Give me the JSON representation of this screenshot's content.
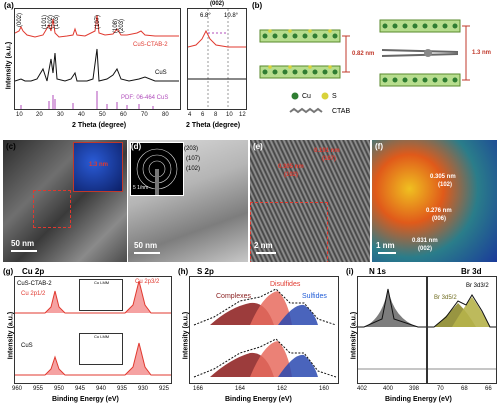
{
  "panel_labels": {
    "a": "(a)",
    "b": "(b)",
    "c": "(c)",
    "d": "(d)",
    "e": "(e)",
    "f": "(f)",
    "g": "(g)",
    "h": "(h)",
    "i": "(i)"
  },
  "panel_a": {
    "ylabel": "Intensity (a.u.)",
    "xlabel": "2 Theta (degree)",
    "xticks": [
      "10",
      "20",
      "30",
      "40",
      "50",
      "60",
      "70",
      "80"
    ],
    "labels_peaks": [
      "(002)",
      "(101)",
      "(102)",
      "(103)",
      "(107)",
      "(108)",
      "(203)"
    ],
    "legend_red": "CuS-CTAB-2",
    "legend_black": "CuS",
    "pdf": "PDF: 06-464 CuS",
    "inset_label": "(002)",
    "inset_xticks": [
      "4",
      "6",
      "8",
      "10",
      "12"
    ],
    "peak1": "6.8°",
    "peak2": "10.8°"
  },
  "panel_b": {
    "cu": "Cu",
    "s": "S",
    "ctab": "CTAB",
    "d1": "0.82 nm",
    "d2": "1.3 nm"
  },
  "panel_c": {
    "scale": "50 nm",
    "inset": "1.3 nm"
  },
  "panel_d": {
    "scale": "50 nm",
    "saed": [
      "(203)",
      "(107)",
      "(102)"
    ],
    "saed_scale": "5 1/nm"
  },
  "panel_e": {
    "scale": "2 nm",
    "d1": "0.305 nm",
    "d1_idx": "(102)",
    "d2": "0.191 nm",
    "d2_idx": "(107)"
  },
  "panel_f": {
    "scale": "1 nm",
    "d1": "0.305 nm",
    "d1_idx": "(102)",
    "d2": "0.276 nm",
    "d2_idx": "(006)",
    "d3": "0.831 nm",
    "d3_idx": "(002)"
  },
  "panel_g": {
    "title": "Cu 2p",
    "ylabel": "Intensity (a.u.)",
    "xlabel": "Binding Energy (eV)",
    "xticks": [
      "960",
      "955",
      "950",
      "945",
      "940",
      "935",
      "930",
      "925"
    ],
    "top": "CuS-CTAB-2",
    "bottom": "CuS",
    "cu2p12": "Cu 2p1/2",
    "cu2p32": "Cu 2p3/2",
    "inset_title": "Cu LMM",
    "inset_xlabel": "Kinetic Energy (eV)",
    "inset_xticks": [
      "925",
      "920",
      "915",
      "910"
    ]
  },
  "panel_h": {
    "title": "S 2p",
    "ylabel": "Intensity (a.u.)",
    "xlabel": "Binding Energy (eV)",
    "xticks": [
      "166",
      "164",
      "162",
      "160"
    ],
    "complexes": "Complexes",
    "disulfides": "Disulfides",
    "sulfides": "Sulfides"
  },
  "panel_i": {
    "title_n": "N 1s",
    "title_br": "Br 3d",
    "ylabel": "Intensity (a.u.)",
    "xlabel": "Binding Energy (eV)",
    "xticks_n": [
      "402",
      "400",
      "398"
    ],
    "xticks_br": [
      "70",
      "68",
      "66"
    ],
    "br52": "Br 3d5/2",
    "br32": "Br 3d3/2"
  }
}
